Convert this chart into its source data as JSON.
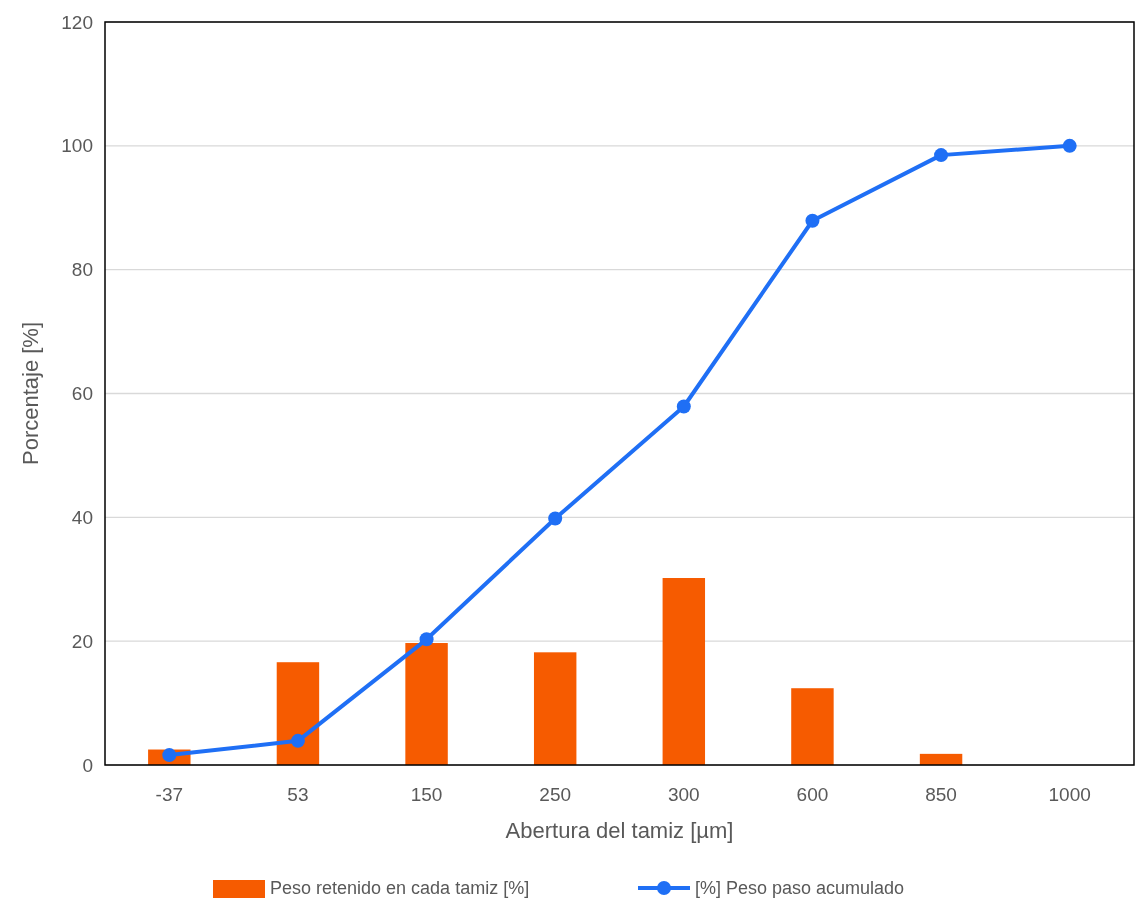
{
  "chart_data": {
    "type": "bar",
    "xlabel": "Abertura del tamiz [µm]",
    "ylabel": "Porcentaje [%]",
    "categories": [
      "-37",
      "53",
      "150",
      "250",
      "300",
      "600",
      "850",
      "1000"
    ],
    "series": [
      {
        "name": "Peso retenido en cada tamiz [%]",
        "color": "#f65b00",
        "values": [
          2.5,
          16.6,
          19.7,
          18.2,
          30.2,
          12.4,
          1.8,
          0
        ]
      },
      {
        "name": "[%] Peso paso acumulado",
        "type": "line",
        "color": "#1f6ff5",
        "marker": "circle",
        "values": [
          1.6,
          3.9,
          20.3,
          39.8,
          57.9,
          87.9,
          98.5,
          100
        ]
      }
    ],
    "ylim": [
      0,
      120
    ],
    "yticks": [
      0,
      20,
      40,
      60,
      80,
      100,
      120
    ],
    "grid": "y",
    "legend": "bottom"
  }
}
